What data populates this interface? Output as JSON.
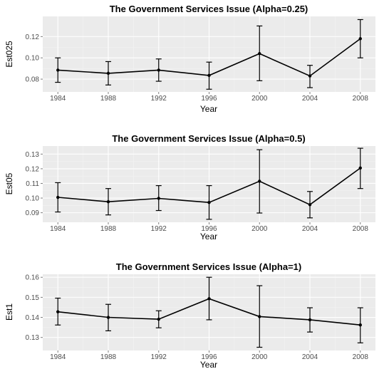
{
  "chart_data": [
    {
      "type": "line",
      "title": "The Government Services Issue (Alpha=0.25)",
      "xlabel": "Year",
      "ylabel": "Est025",
      "x": [
        1984,
        1988,
        1992,
        1996,
        2000,
        2004,
        2008
      ],
      "y": [
        0.0885,
        0.0855,
        0.0885,
        0.0835,
        0.104,
        0.083,
        0.118
      ],
      "ymin": [
        0.077,
        0.0745,
        0.078,
        0.0705,
        0.0785,
        0.072,
        0.1
      ],
      "ymax": [
        0.1,
        0.0965,
        0.099,
        0.096,
        0.13,
        0.093,
        0.136
      ],
      "ylim": [
        0.068,
        0.139
      ],
      "xlim": [
        1982.8,
        2009.2
      ],
      "yticks": [
        0.08,
        0.1,
        0.12
      ],
      "yticklabels": [
        "0.08",
        "0.10",
        "0.12"
      ],
      "xticklabels": [
        "1984",
        "1988",
        "1992",
        "1996",
        "2000",
        "2004",
        "2008"
      ],
      "grid": true
    },
    {
      "type": "line",
      "title": "The Government Services Issue (Alpha=0.5)",
      "xlabel": "Year",
      "ylabel": "Est05",
      "x": [
        1984,
        1988,
        1992,
        1996,
        2000,
        2004,
        2008
      ],
      "y": [
        0.1005,
        0.0975,
        0.0998,
        0.097,
        0.1115,
        0.0955,
        0.1205
      ],
      "ymin": [
        0.0905,
        0.0885,
        0.0915,
        0.0855,
        0.0898,
        0.0865,
        0.1065
      ],
      "ymax": [
        0.1105,
        0.1065,
        0.1085,
        0.1085,
        0.133,
        0.1045,
        0.134
      ],
      "ylim": [
        0.0835,
        0.1355
      ],
      "xlim": [
        1982.8,
        2009.2
      ],
      "yticks": [
        0.09,
        0.1,
        0.11,
        0.12,
        0.13
      ],
      "yticklabels": [
        "0.09",
        "0.10",
        "0.11",
        "0.12",
        "0.13"
      ],
      "xticklabels": [
        "1984",
        "1988",
        "1992",
        "1996",
        "2000",
        "2004",
        "2008"
      ],
      "grid": true
    },
    {
      "type": "line",
      "title": "The Government Services Issue (Alpha=1)",
      "xlabel": "Year",
      "ylabel": "Est1",
      "x": [
        1984,
        1988,
        1992,
        1996,
        2000,
        2004,
        2008
      ],
      "y": [
        0.1428,
        0.14,
        0.1391,
        0.1493,
        0.1404,
        0.1388,
        0.1362
      ],
      "ymin": [
        0.1362,
        0.1333,
        0.1348,
        0.1388,
        0.1251,
        0.1327,
        0.1273
      ],
      "ymax": [
        0.1496,
        0.1465,
        0.1433,
        0.16,
        0.1558,
        0.1448,
        0.1448
      ],
      "ylim": [
        0.1235,
        0.1615
      ],
      "xlim": [
        1982.8,
        2009.2
      ],
      "yticks": [
        0.13,
        0.14,
        0.15,
        0.16
      ],
      "yticklabels": [
        "0.13",
        "0.14",
        "0.15",
        "0.16"
      ],
      "xticklabels": [
        "1984",
        "1988",
        "1992",
        "1996",
        "2000",
        "2004",
        "2008"
      ],
      "grid": true
    }
  ],
  "colors": {
    "panel_background": "#ebebeb",
    "grid_major": "#ffffff",
    "grid_minor": "#f3f3f3",
    "line": "#000000",
    "tick_text": "#4d4d4d"
  }
}
